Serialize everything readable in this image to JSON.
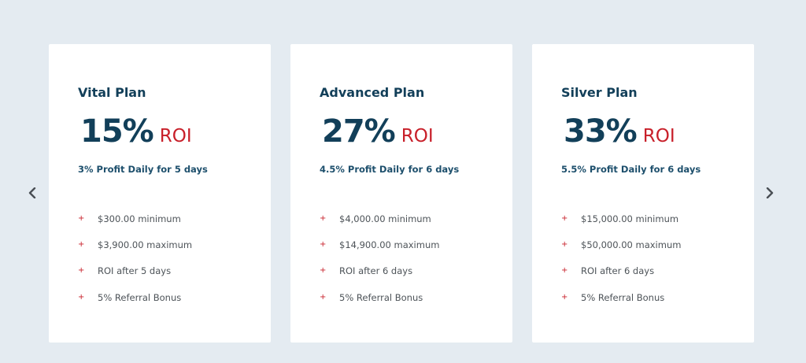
{
  "colors": {
    "background": "#e4ebf1",
    "card": "#ffffff",
    "heading": "#123f59",
    "accent_red": "#c8202a",
    "text": "#4d5358"
  },
  "carousel": {
    "prev_icon": "chevron-left-icon",
    "next_icon": "chevron-right-icon"
  },
  "plans": [
    {
      "name": "Vital Plan",
      "rate": "15%",
      "roi_label": "ROI",
      "daily": "3% Profit Daily for 5 days",
      "features": [
        "$300.00 minimum",
        "$3,900.00 maximum",
        "ROI after 5 days",
        "5% Referral Bonus"
      ]
    },
    {
      "name": "Advanced Plan",
      "rate": "27%",
      "roi_label": "ROI",
      "daily": "4.5% Profit Daily for 6 days",
      "features": [
        "$4,000.00 minimum",
        "$14,900.00 maximum",
        "ROI after 6 days",
        "5% Referral Bonus"
      ]
    },
    {
      "name": "Silver Plan",
      "rate": "33%",
      "roi_label": "ROI",
      "daily": "5.5% Profit Daily for 6 days",
      "features": [
        "$15,000.00 minimum",
        "$50,000.00 maximum",
        "ROI after 6 days",
        "5% Referral Bonus"
      ]
    }
  ],
  "bullet_glyph": "+"
}
